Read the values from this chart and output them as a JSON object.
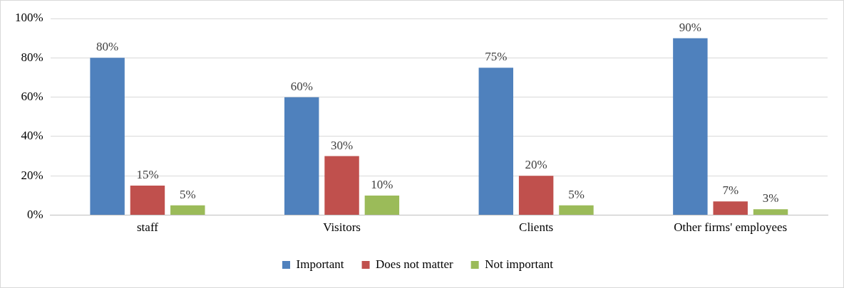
{
  "chart_data": {
    "type": "bar",
    "categories": [
      "staff",
      "Visitors",
      "Clients",
      "Other firms' employees"
    ],
    "series": [
      {
        "name": "Important",
        "color": "#4f81bd",
        "values": [
          80,
          60,
          75,
          90
        ],
        "value_labels": [
          "80%",
          "60%",
          "75%",
          "90%"
        ]
      },
      {
        "name": "Does not matter",
        "color": "#c0504d",
        "values": [
          15,
          30,
          20,
          7
        ],
        "value_labels": [
          "15%",
          "30%",
          "20%",
          "7%"
        ]
      },
      {
        "name": "Not important",
        "color": "#9bbb59",
        "values": [
          5,
          10,
          5,
          3
        ],
        "value_labels": [
          "5%",
          "10%",
          "5%",
          "3%"
        ]
      }
    ],
    "ylim": [
      0,
      100
    ],
    "yticks": [
      {
        "value": 0,
        "label": "0%"
      },
      {
        "value": 20,
        "label": "20%"
      },
      {
        "value": 40,
        "label": "40%"
      },
      {
        "value": 60,
        "label": "60%"
      },
      {
        "value": 80,
        "label": "80%"
      },
      {
        "value": 100,
        "label": "100%"
      }
    ],
    "grid": "y",
    "legend": "bottom"
  }
}
